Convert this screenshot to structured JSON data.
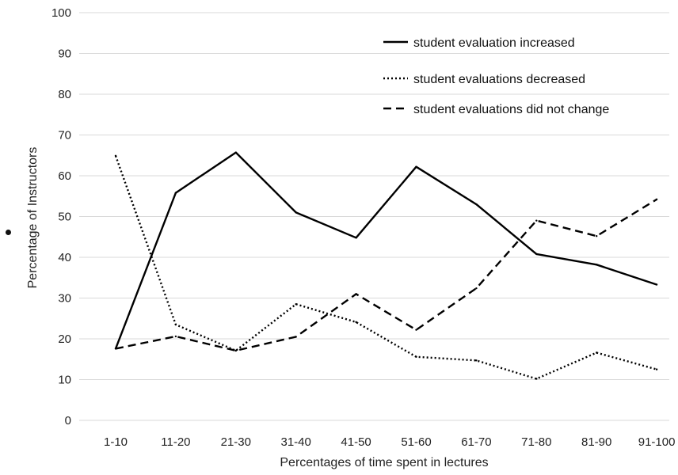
{
  "chart_data": {
    "type": "line",
    "title": "",
    "xlabel": "Percentages of time spent in lectures",
    "ylabel": "Percentage of Instructors",
    "categories": [
      "1-10",
      "11-20",
      "21-30",
      "31-40",
      "41-50",
      "51-60",
      "61-70",
      "71-80",
      "81-90",
      "91-100"
    ],
    "ylim": [
      0,
      100
    ],
    "yticks": [
      0,
      10,
      20,
      30,
      40,
      50,
      60,
      70,
      80,
      90,
      100
    ],
    "grid": "horizontal",
    "legend_position": "top-right",
    "series": [
      {
        "name": "student evaluation increased",
        "style": "solid",
        "color": "#000000",
        "values": [
          17.6,
          55.8,
          65.7,
          51.0,
          44.8,
          62.2,
          53.0,
          40.8,
          38.2,
          33.3
        ]
      },
      {
        "name": "student evaluations decreased",
        "style": "dotted",
        "color": "#000000",
        "values": [
          64.9,
          23.5,
          17.1,
          28.5,
          24.1,
          15.6,
          14.7,
          10.2,
          16.6,
          12.5
        ]
      },
      {
        "name": "student evaluations did not change",
        "style": "dashed",
        "color": "#000000",
        "values": [
          17.6,
          20.6,
          17.1,
          20.5,
          31.0,
          22.2,
          32.4,
          49.0,
          45.2,
          54.2
        ]
      }
    ]
  },
  "colors": {
    "grid": "#d9d9d9",
    "text": "#222222",
    "line": "#000000"
  }
}
